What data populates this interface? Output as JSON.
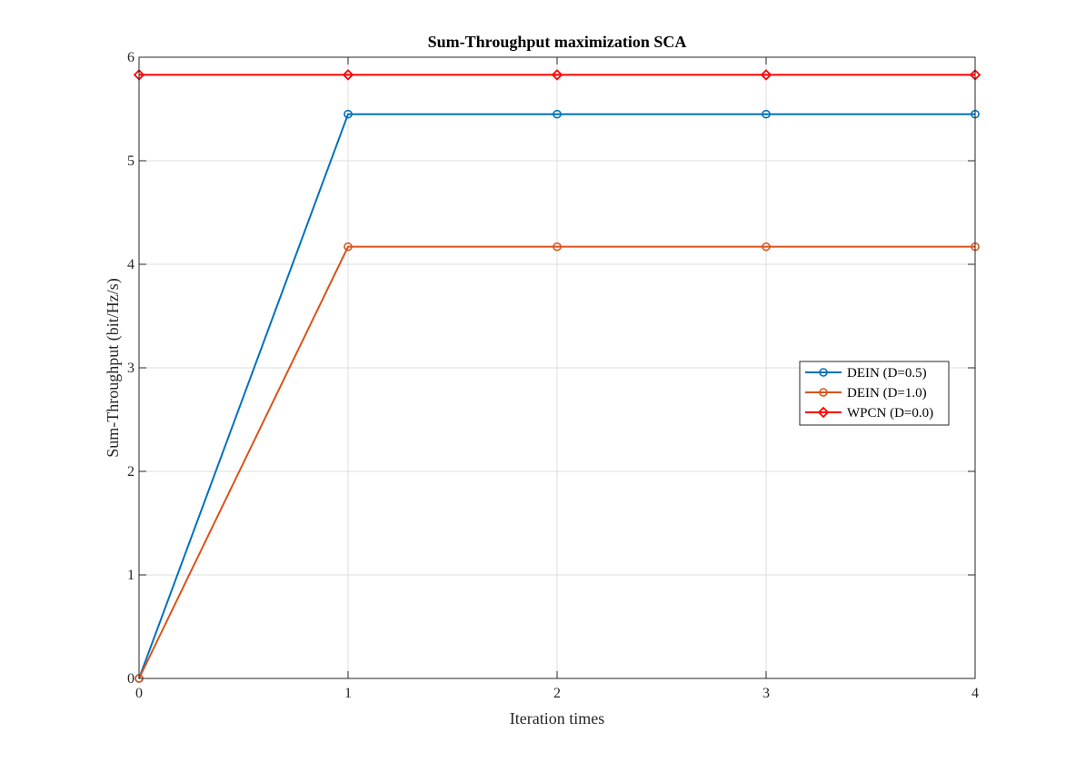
{
  "chart_data": {
    "type": "line",
    "title": "Sum-Throughput maximization SCA",
    "xlabel": "Iteration times",
    "ylabel": "Sum-Throughput (bit/Hz/s)",
    "xlim": [
      0,
      4
    ],
    "ylim": [
      0,
      6
    ],
    "xticks": [
      0,
      1,
      2,
      3,
      4
    ],
    "yticks": [
      0,
      1,
      2,
      3,
      4,
      5,
      6
    ],
    "grid": true,
    "legend_position": "right",
    "x": [
      0,
      1,
      2,
      3,
      4
    ],
    "series": [
      {
        "name": "DEIN (D=0.5)",
        "values": [
          0,
          5.45,
          5.45,
          5.45,
          5.45
        ],
        "color": "#0072BD",
        "marker": "circle"
      },
      {
        "name": "DEIN (D=1.0)",
        "values": [
          0,
          4.17,
          4.17,
          4.17,
          4.17
        ],
        "color": "#D95319",
        "marker": "circle"
      },
      {
        "name": "WPCN (D=0.0)",
        "values": [
          5.83,
          5.83,
          5.83,
          5.83,
          5.83
        ],
        "color": "#FF0000",
        "marker": "diamond"
      }
    ]
  }
}
